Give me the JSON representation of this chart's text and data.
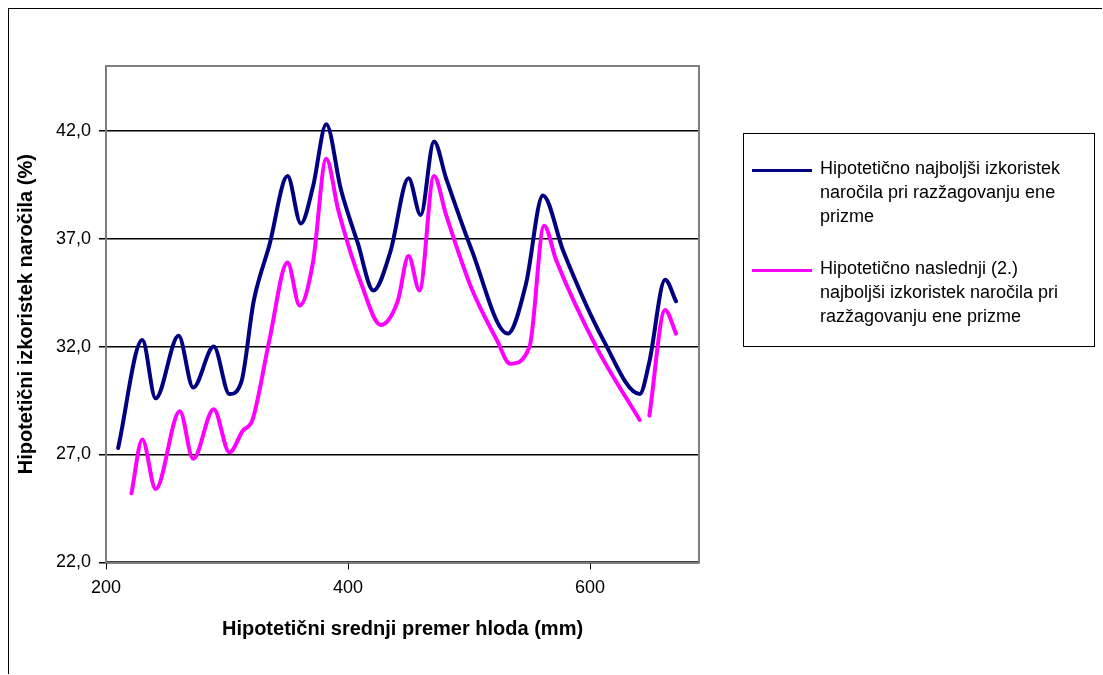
{
  "chart_data": {
    "type": "line",
    "xlabel": "Hipotetični srednji premer hloda (mm)",
    "ylabel": "Hipotetični izkoristek naročila (%)",
    "xlim": [
      200,
      690
    ],
    "xticks": [
      200,
      400,
      600
    ],
    "ylim": [
      22,
      45
    ],
    "yticks": [
      {
        "value": 22,
        "label": "22,0"
      },
      {
        "value": 27,
        "label": "27,0"
      },
      {
        "value": 32,
        "label": "32,0"
      },
      {
        "value": 37,
        "label": "37,0"
      },
      {
        "value": 42,
        "label": "42,0"
      }
    ],
    "grid": "y",
    "legend": "right",
    "marker": "none",
    "line_style": "solid",
    "series": [
      {
        "name": "Hipotetično najboljši izkoristek naročila pri razžagovanju ene prizme",
        "color": "#000080",
        "x": [
          210,
          230,
          241,
          260,
          272,
          289,
          302,
          312,
          322,
          335,
          350,
          361,
          371,
          382,
          394,
          408,
          421,
          435,
          450,
          460,
          471,
          481,
          502,
          532,
          547,
          561,
          578,
          611,
          641,
          649,
          662,
          671
        ],
        "values": [
          27.3,
          32.3,
          29.6,
          32.5,
          30.1,
          32.0,
          29.8,
          30.4,
          34.1,
          36.7,
          39.9,
          37.7,
          39.4,
          42.3,
          39.3,
          36.8,
          34.6,
          36.4,
          39.8,
          38.1,
          41.5,
          39.8,
          36.5,
          32.6,
          34.9,
          39.0,
          36.4,
          32.3,
          29.8,
          31.3,
          35.1,
          34.1
        ]
      },
      {
        "name": "Hipotetično naslednji (2.) najboljši izkoristek naročila pri razžagovanju ene prizme",
        "color": "#ff00ff",
        "x": [
          221,
          230,
          241,
          261,
          272,
          289,
          302,
          313,
          321,
          335,
          350,
          360,
          371,
          382,
          392,
          411,
          427,
          441,
          450,
          459,
          471,
          481,
          502,
          523,
          534,
          550,
          562,
          572,
          605,
          641,
          645,
          649,
          662,
          671
        ],
        "values": [
          25.2,
          27.7,
          25.4,
          29.0,
          26.8,
          29.1,
          27.1,
          28.1,
          28.6,
          32.3,
          35.9,
          33.9,
          35.9,
          40.7,
          38.3,
          34.9,
          33.0,
          34.1,
          36.2,
          34.6,
          39.9,
          38.1,
          34.7,
          32.3,
          31.2,
          32.0,
          37.6,
          36.0,
          32.0,
          28.6,
          null,
          28.8,
          33.7,
          32.6
        ]
      }
    ]
  }
}
